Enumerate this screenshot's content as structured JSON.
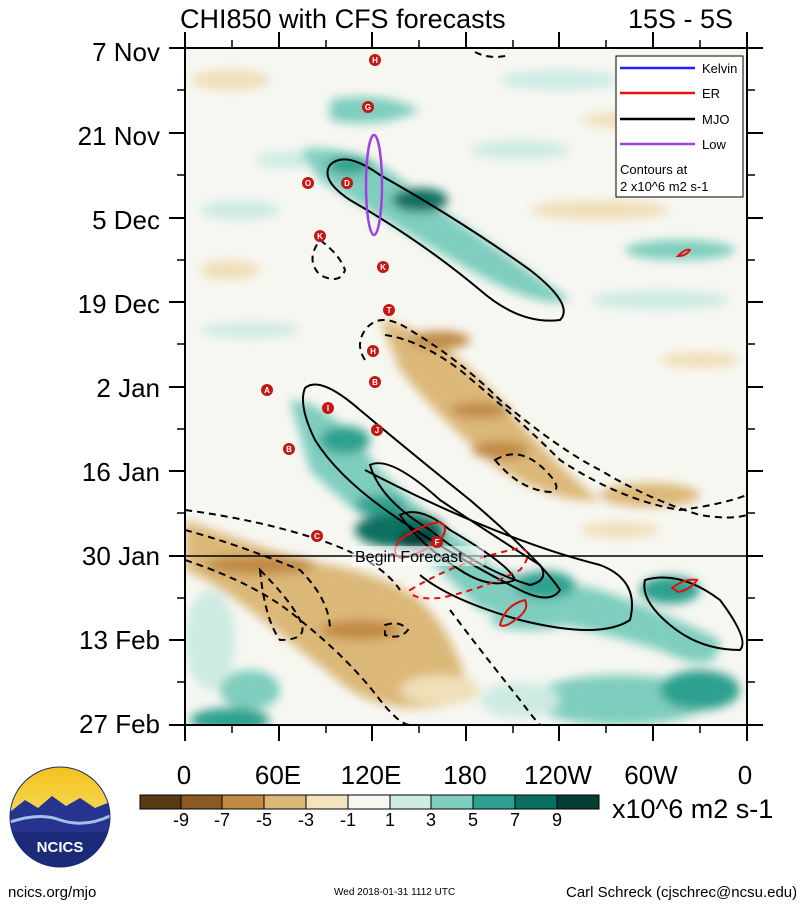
{
  "chart_data": {
    "type": "heatmap",
    "title": "CHI850 with CFS forecasts",
    "region": "15S - 5S",
    "y_tick_labels": [
      "7 Nov",
      "21 Nov",
      "5 Dec",
      "19 Dec",
      "2 Jan",
      "16 Jan",
      "30 Jan",
      "13 Feb",
      "27 Feb"
    ],
    "x_tick_labels": [
      "0",
      "60E",
      "120E",
      "180",
      "120W",
      "60W",
      "0"
    ],
    "x_range_deg_east": [
      0,
      360
    ],
    "forecast_start": "30 Jan",
    "forecast_label": "Begin Forecast",
    "colorbar": {
      "levels": [
        "-9",
        "-7",
        "-5",
        "-3",
        "-1",
        "1",
        "3",
        "5",
        "7",
        "9"
      ],
      "colors": [
        "#5a3a12",
        "#8a5a22",
        "#c08a45",
        "#dcb878",
        "#f3e3bf",
        "#f7f7f2",
        "#cdebe3",
        "#7ecdbe",
        "#2fa08f",
        "#0a6f60",
        "#053d34"
      ],
      "units": "x10^6 m2 s-1"
    },
    "legend": {
      "items": [
        {
          "label": "Kelvin",
          "color": "#2020ff"
        },
        {
          "label": "ER",
          "color": "#ee1111"
        },
        {
          "label": "MJO",
          "color": "#000000"
        },
        {
          "label": "Low",
          "color": "#a040e0"
        }
      ],
      "note_line1": "Contours at",
      "note_line2": "2 x10^6 m2 s-1"
    },
    "storm_markers": [
      "H",
      "G",
      "O",
      "D",
      "K",
      "T",
      "H",
      "B",
      "A",
      "I",
      "J",
      "B",
      "C",
      "F",
      "K"
    ]
  },
  "footer": {
    "left": "ncics.org/mjo",
    "center": "Wed 2018-01-31 1112 UTC",
    "right": "Carl Schreck (cjschrec@ncsu.edu)",
    "logo_text": "NCICS"
  }
}
